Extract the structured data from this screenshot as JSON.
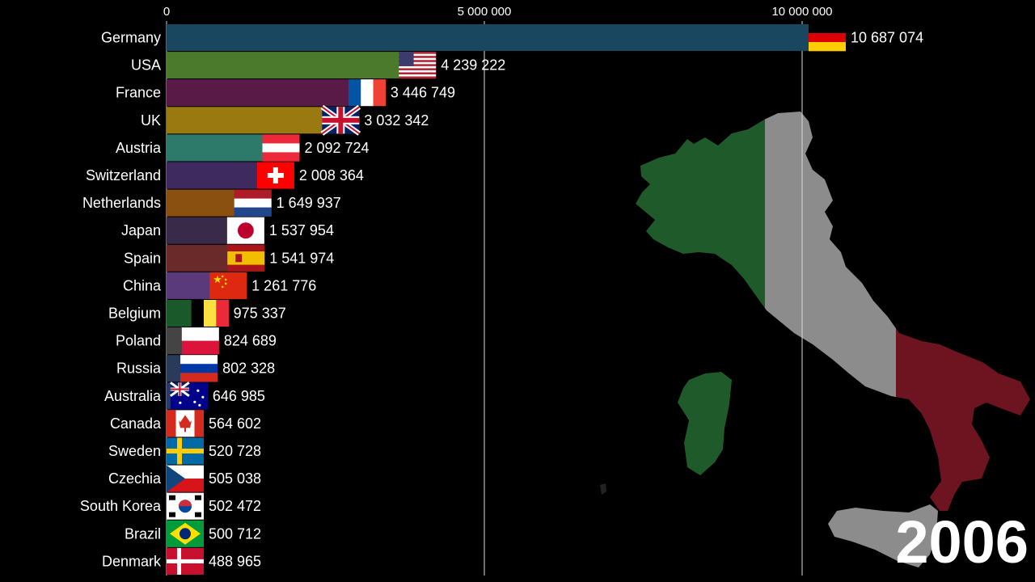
{
  "chart_data": {
    "type": "bar",
    "orientation": "horizontal",
    "year": "2006",
    "xlim": [
      0,
      11000000
    ],
    "xticks": [
      {
        "value": 0,
        "label": "0"
      },
      {
        "value": 5000000,
        "label": "5 000 000"
      },
      {
        "value": 10000000,
        "label": "10 000 000"
      }
    ],
    "grid": true,
    "rows": [
      {
        "category": "Germany",
        "value": 10687074,
        "label": "10 687 074",
        "color": "#1a4760",
        "flag": "germany-flag"
      },
      {
        "category": "USA",
        "value": 4239222,
        "label": "4 239 222",
        "color": "#4c7a2d",
        "flag": "usa-flag"
      },
      {
        "category": "France",
        "value": 3446749,
        "label": "3 446 749",
        "color": "#5a1a47",
        "flag": "france-flag"
      },
      {
        "category": "UK",
        "value": 3032342,
        "label": "3 032 342",
        "color": "#9a7a10",
        "flag": "uk-flag"
      },
      {
        "category": "Austria",
        "value": 2092724,
        "label": "2 092 724",
        "color": "#2e7a6a",
        "flag": "austria-flag"
      },
      {
        "category": "Switzerland",
        "value": 2008364,
        "label": "2 008 364",
        "color": "#3e2a5e",
        "flag": "switzerland-flag"
      },
      {
        "category": "Netherlands",
        "value": 1649937,
        "label": "1 649 937",
        "color": "#8a5010",
        "flag": "netherlands-flag"
      },
      {
        "category": "Japan",
        "value": 1537954,
        "label": "1 537 954",
        "color": "#3a2a4a",
        "flag": "japan-flag"
      },
      {
        "category": "Spain",
        "value": 1541974,
        "label": "1 541 974",
        "color": "#6a2a2a",
        "flag": "spain-flag"
      },
      {
        "category": "China",
        "value": 1261776,
        "label": "1 261 776",
        "color": "#5a3a7a",
        "flag": "china-flag"
      },
      {
        "category": "Belgium",
        "value": 975337,
        "label": "975 337",
        "color": "#1a5a2a",
        "flag": "belgium-flag"
      },
      {
        "category": "Poland",
        "value": 824689,
        "label": "824 689",
        "color": "#444444",
        "flag": "poland-flag"
      },
      {
        "category": "Russia",
        "value": 802328,
        "label": "802 328",
        "color": "#2a3a5a",
        "flag": "russia-flag"
      },
      {
        "category": "Australia",
        "value": 646985,
        "label": "646 985",
        "color": "#2a3a6a",
        "flag": "australia-flag"
      },
      {
        "category": "Canada",
        "value": 564602,
        "label": "564 602",
        "color": "#7a1a1a",
        "flag": "canada-flag"
      },
      {
        "category": "Sweden",
        "value": 520728,
        "label": "520 728",
        "color": "#2a4a6a",
        "flag": "sweden-flag"
      },
      {
        "category": "Czechia",
        "value": 505038,
        "label": "505 038",
        "color": "#3a3a6a",
        "flag": "czechia-flag"
      },
      {
        "category": "South Korea",
        "value": 502472,
        "label": "502 472",
        "color": "#555555",
        "flag": "south-korea-flag"
      },
      {
        "category": "Brazil",
        "value": 500712,
        "label": "500 712",
        "color": "#1a6a2a",
        "flag": "brazil-flag"
      },
      {
        "category": "Denmark",
        "value": 488965,
        "label": "488 965",
        "color": "#8a1a2a",
        "flag": "denmark-flag"
      }
    ]
  },
  "background": {
    "image": "italy-flag-map-icon",
    "colors": {
      "green": "#1f5a2a",
      "white": "#8c8c8c",
      "red": "#6e1420"
    }
  }
}
